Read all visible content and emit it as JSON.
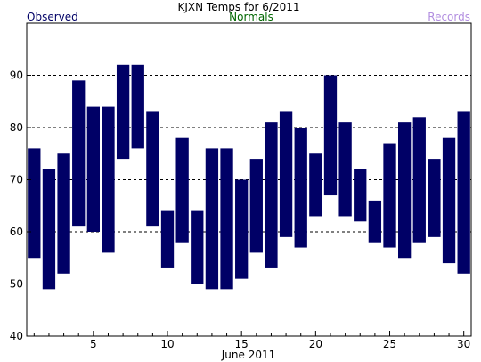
{
  "chart_data": {
    "type": "bar",
    "title": "KJXN Temps for 6/2011",
    "xlabel": "June 2011",
    "ylabel": "",
    "legend": [
      {
        "label": "Observed",
        "color": "#000066"
      },
      {
        "label": "Normals",
        "color": "#006600"
      },
      {
        "label": "Records",
        "color": "#b28ee0"
      }
    ],
    "bar_color": "#000066",
    "ylim": [
      40,
      100
    ],
    "yticks": [
      40,
      50,
      60,
      70,
      80,
      90
    ],
    "xlim": [
      0.5,
      30.5
    ],
    "xticks": [
      5,
      10,
      15,
      20,
      25,
      30
    ],
    "grid_y": true,
    "series": [
      {
        "days": [
          1,
          2,
          3,
          4,
          5,
          6,
          7,
          8,
          9,
          10,
          11,
          12,
          13,
          14,
          15,
          16,
          17,
          18,
          19,
          20,
          21,
          22,
          23,
          24,
          25,
          26,
          27,
          28,
          29,
          30
        ],
        "high": [
          76,
          72,
          75,
          89,
          84,
          84,
          92,
          92,
          83,
          64,
          78,
          64,
          76,
          76,
          70,
          74,
          81,
          83,
          80,
          75,
          90,
          81,
          72,
          66,
          77,
          81,
          82,
          74,
          78,
          83
        ],
        "low": [
          55,
          49,
          52,
          61,
          60,
          56,
          74,
          76,
          61,
          53,
          58,
          50,
          49,
          49,
          51,
          56,
          53,
          59,
          57,
          63,
          67,
          63,
          62,
          58,
          57,
          55,
          58,
          59,
          54,
          52
        ]
      }
    ]
  }
}
